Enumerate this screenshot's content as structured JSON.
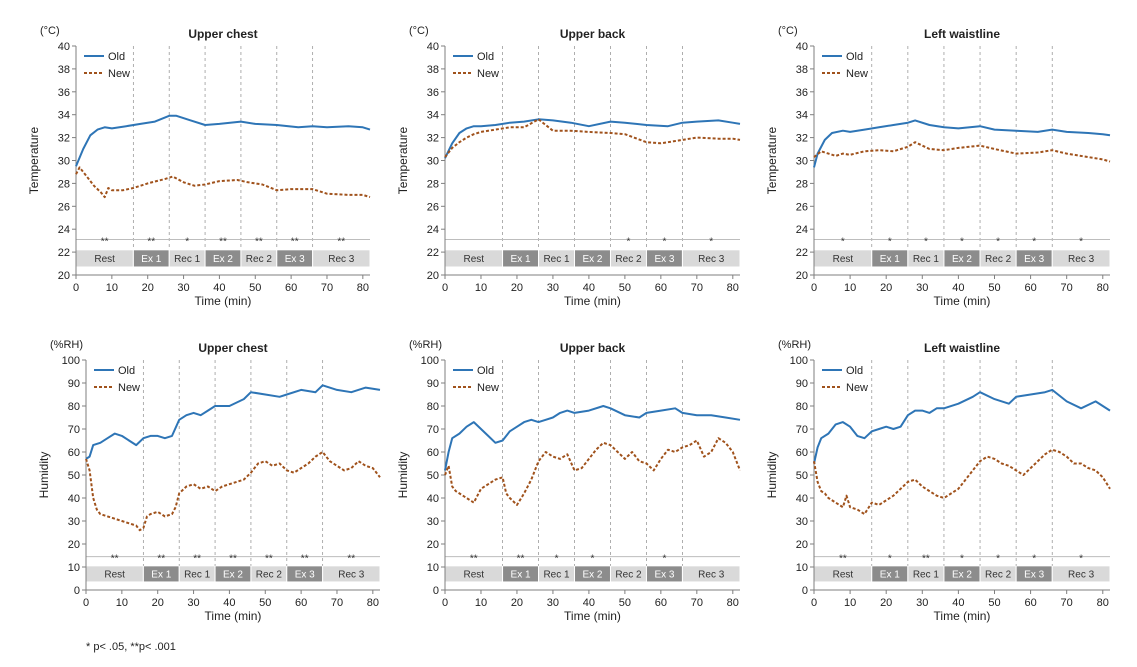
{
  "footnote": "* p< .05, **p< .001",
  "colors": {
    "old": "#2E75B6",
    "new": "#A0521C",
    "phase_light": "#D9D9D9",
    "phase_dark": "#8C8C8C",
    "axis": "#7F7F7F",
    "divider": "#9A9A9A"
  },
  "phases": [
    {
      "label": "Rest",
      "start": 0,
      "end": 16,
      "dark": false
    },
    {
      "label": "Ex 1",
      "start": 16,
      "end": 26,
      "dark": true
    },
    {
      "label": "Rec 1",
      "start": 26,
      "end": 36,
      "dark": false
    },
    {
      "label": "Ex 2",
      "start": 36,
      "end": 46,
      "dark": true
    },
    {
      "label": "Rec 2",
      "start": 46,
      "end": 56,
      "dark": false
    },
    {
      "label": "Ex 3",
      "start": 56,
      "end": 66,
      "dark": true
    },
    {
      "label": "Rec 3",
      "start": 66,
      "end": 82,
      "dark": false
    }
  ],
  "chart_data": [
    {
      "type": "line",
      "title": "Upper chest",
      "unit": "(°C)",
      "xlabel": "Time (min)",
      "ylabel": "Temperature",
      "xlim": [
        0,
        82
      ],
      "xticks": [
        0,
        10,
        20,
        30,
        40,
        50,
        60,
        70,
        80
      ],
      "ylim": [
        20,
        40
      ],
      "yticks": [
        20,
        22,
        24,
        26,
        28,
        30,
        32,
        34,
        36,
        38,
        40
      ],
      "sig_y": 23.1,
      "phase_y": [
        20.7,
        22.2
      ],
      "sig_marks": [
        "**",
        "**",
        "*",
        "**",
        "**",
        "**",
        "**"
      ],
      "legend": [
        "Old",
        "New"
      ],
      "series": [
        {
          "name": "Old",
          "x": [
            0,
            2,
            4,
            6,
            8,
            10,
            14,
            18,
            22,
            26,
            28,
            32,
            36,
            40,
            46,
            50,
            56,
            62,
            66,
            70,
            76,
            80,
            82
          ],
          "y": [
            29.5,
            31,
            32.2,
            32.7,
            32.9,
            32.8,
            33,
            33.2,
            33.4,
            33.9,
            33.9,
            33.5,
            33.1,
            33.2,
            33.4,
            33.2,
            33.1,
            32.9,
            33,
            32.9,
            33,
            32.9,
            32.7
          ]
        },
        {
          "name": "New",
          "x": [
            0,
            1,
            3,
            5,
            7,
            8,
            9,
            10,
            13,
            16,
            20,
            25,
            27,
            30,
            33,
            36,
            40,
            45,
            48,
            52,
            56,
            60,
            66,
            70,
            76,
            80,
            82
          ],
          "y": [
            28.8,
            29.4,
            28.6,
            27.8,
            27.2,
            26.8,
            27.6,
            27.4,
            27.4,
            27.6,
            28,
            28.4,
            28.6,
            28.1,
            27.8,
            27.9,
            28.2,
            28.3,
            28.1,
            27.9,
            27.4,
            27.5,
            27.5,
            27.1,
            27,
            27,
            26.8
          ]
        }
      ]
    },
    {
      "type": "line",
      "title": "Upper back",
      "unit": "(°C)",
      "xlabel": "Time (min)",
      "ylabel": "Temperature",
      "xlim": [
        0,
        82
      ],
      "xticks": [
        0,
        10,
        20,
        30,
        40,
        50,
        60,
        70,
        80
      ],
      "ylim": [
        20,
        40
      ],
      "yticks": [
        20,
        22,
        24,
        26,
        28,
        30,
        32,
        34,
        36,
        38,
        40
      ],
      "sig_y": 23.1,
      "phase_y": [
        20.7,
        22.2
      ],
      "sig_marks": [
        "",
        "",
        "",
        "",
        "*",
        "*",
        "*"
      ],
      "legend": [
        "Old",
        "New"
      ],
      "series": [
        {
          "name": "Old",
          "x": [
            0,
            2,
            4,
            6,
            8,
            10,
            14,
            18,
            22,
            26,
            30,
            35,
            40,
            46,
            50,
            56,
            62,
            66,
            70,
            76,
            80,
            82
          ],
          "y": [
            30.2,
            31.5,
            32.4,
            32.8,
            33,
            33,
            33.1,
            33.3,
            33.4,
            33.6,
            33.5,
            33.3,
            33,
            33.4,
            33.3,
            33.1,
            33,
            33.3,
            33.4,
            33.5,
            33.3,
            33.2
          ]
        },
        {
          "name": "New",
          "x": [
            0,
            2,
            4,
            6,
            8,
            10,
            14,
            18,
            22,
            26,
            30,
            35,
            40,
            46,
            50,
            56,
            60,
            66,
            70,
            76,
            80,
            82
          ],
          "y": [
            30.3,
            31.1,
            31.6,
            32,
            32.3,
            32.5,
            32.7,
            32.9,
            32.9,
            33.6,
            32.6,
            32.6,
            32.5,
            32.4,
            32.3,
            31.6,
            31.5,
            31.8,
            32,
            31.9,
            31.9,
            31.8
          ]
        }
      ]
    },
    {
      "type": "line",
      "title": "Left waistline",
      "unit": "(°C)",
      "xlabel": "Time (min)",
      "ylabel": "Temperature",
      "xlim": [
        0,
        82
      ],
      "xticks": [
        0,
        10,
        20,
        30,
        40,
        50,
        60,
        70,
        80
      ],
      "ylim": [
        20,
        40
      ],
      "yticks": [
        20,
        22,
        24,
        26,
        28,
        30,
        32,
        34,
        36,
        38,
        40
      ],
      "sig_y": 23.1,
      "phase_y": [
        20.7,
        22.2
      ],
      "sig_marks": [
        "*",
        "*",
        "*",
        "*",
        "*",
        "*",
        "*"
      ],
      "legend": [
        "Old",
        "New"
      ],
      "series": [
        {
          "name": "Old",
          "x": [
            0,
            1,
            3,
            5,
            8,
            10,
            14,
            18,
            22,
            26,
            28,
            32,
            36,
            40,
            46,
            50,
            56,
            62,
            66,
            70,
            76,
            80,
            82
          ],
          "y": [
            29.4,
            30.6,
            31.8,
            32.4,
            32.6,
            32.5,
            32.7,
            32.9,
            33.1,
            33.3,
            33.5,
            33.1,
            32.9,
            32.8,
            33,
            32.7,
            32.6,
            32.5,
            32.7,
            32.5,
            32.4,
            32.3,
            32.2
          ]
        },
        {
          "name": "New",
          "x": [
            0,
            2,
            4,
            6,
            8,
            10,
            14,
            18,
            22,
            26,
            28,
            32,
            36,
            40,
            46,
            50,
            56,
            62,
            66,
            70,
            76,
            80,
            82
          ],
          "y": [
            30.3,
            30.8,
            30.6,
            30.4,
            30.6,
            30.5,
            30.8,
            30.9,
            30.8,
            31.2,
            31.6,
            31,
            30.9,
            31.1,
            31.3,
            31,
            30.6,
            30.7,
            30.9,
            30.6,
            30.3,
            30.1,
            29.9
          ]
        }
      ]
    },
    {
      "type": "line",
      "title": "Upper chest",
      "unit": "(%RH)",
      "xlabel": "Time (min)",
      "ylabel": "Humidity",
      "xlim": [
        0,
        82
      ],
      "xticks": [
        0,
        10,
        20,
        30,
        40,
        50,
        60,
        70,
        80
      ],
      "ylim": [
        0,
        100
      ],
      "yticks": [
        0,
        10,
        20,
        30,
        40,
        50,
        60,
        70,
        80,
        90,
        100
      ],
      "sig_y": 14.5,
      "phase_y": [
        3.5,
        10.5
      ],
      "sig_marks": [
        "**",
        "**",
        "**",
        "**",
        "**",
        "**",
        "**"
      ],
      "legend": [
        "Old",
        "New"
      ],
      "series": [
        {
          "name": "Old",
          "x": [
            0,
            1,
            2,
            4,
            6,
            8,
            10,
            12,
            14,
            16,
            18,
            20,
            22,
            24,
            26,
            28,
            30,
            32,
            34,
            36,
            40,
            44,
            46,
            50,
            54,
            56,
            60,
            64,
            66,
            70,
            74,
            78,
            82
          ],
          "y": [
            57,
            58,
            63,
            64,
            66,
            68,
            67,
            65,
            63,
            66,
            67,
            67,
            66,
            67,
            74,
            76,
            77,
            76,
            78,
            80,
            80,
            83,
            86,
            85,
            84,
            85,
            87,
            86,
            89,
            87,
            86,
            88,
            87
          ]
        },
        {
          "name": "New",
          "x": [
            0,
            1,
            2,
            3,
            4,
            6,
            8,
            10,
            12,
            14,
            15,
            16,
            17,
            18,
            20,
            22,
            24,
            25,
            26,
            28,
            30,
            32,
            34,
            36,
            38,
            40,
            42,
            44,
            46,
            48,
            50,
            52,
            54,
            56,
            58,
            60,
            62,
            64,
            66,
            68,
            70,
            72,
            74,
            76,
            78,
            80,
            82
          ],
          "y": [
            57,
            52,
            40,
            35,
            33,
            32,
            31,
            30,
            29,
            28,
            26,
            27,
            32,
            33,
            34,
            32,
            33,
            36,
            42,
            45,
            46,
            44,
            45,
            43,
            45,
            46,
            47,
            48,
            51,
            55,
            56,
            54,
            55,
            52,
            51,
            53,
            55,
            58,
            60,
            56,
            54,
            52,
            53,
            56,
            54,
            53,
            49
          ]
        }
      ]
    },
    {
      "type": "line",
      "title": "Upper back",
      "unit": "(%RH)",
      "xlabel": "Time (min)",
      "ylabel": "Humidity",
      "xlim": [
        0,
        82
      ],
      "xticks": [
        0,
        10,
        20,
        30,
        40,
        50,
        60,
        70,
        80
      ],
      "ylim": [
        0,
        100
      ],
      "yticks": [
        0,
        10,
        20,
        30,
        40,
        50,
        60,
        70,
        80,
        90,
        100
      ],
      "sig_y": 14.5,
      "phase_y": [
        3.5,
        10.5
      ],
      "sig_marks": [
        "**",
        "**",
        "*",
        "*",
        "",
        "*",
        ""
      ],
      "legend": [
        "Old",
        "New"
      ],
      "series": [
        {
          "name": "Old",
          "x": [
            0,
            1,
            2,
            4,
            6,
            8,
            10,
            12,
            14,
            16,
            18,
            20,
            22,
            24,
            26,
            28,
            30,
            32,
            34,
            36,
            40,
            44,
            46,
            50,
            54,
            56,
            60,
            64,
            66,
            70,
            74,
            78,
            82
          ],
          "y": [
            52,
            60,
            66,
            68,
            71,
            73,
            70,
            67,
            64,
            65,
            69,
            71,
            73,
            74,
            73,
            74,
            75,
            77,
            78,
            77,
            78,
            80,
            79,
            76,
            75,
            77,
            78,
            79,
            77,
            76,
            76,
            75,
            74
          ]
        },
        {
          "name": "New",
          "x": [
            0,
            1,
            2,
            3,
            4,
            6,
            8,
            10,
            12,
            14,
            16,
            17,
            18,
            20,
            22,
            24,
            26,
            28,
            30,
            32,
            34,
            36,
            38,
            40,
            42,
            44,
            46,
            48,
            50,
            52,
            54,
            56,
            58,
            60,
            62,
            64,
            66,
            68,
            70,
            72,
            74,
            76,
            78,
            80,
            82
          ],
          "y": [
            50,
            54,
            45,
            43,
            42,
            40,
            38,
            44,
            46,
            48,
            49,
            42,
            40,
            37,
            42,
            48,
            56,
            60,
            58,
            57,
            59,
            52,
            53,
            57,
            61,
            64,
            63,
            60,
            57,
            60,
            56,
            55,
            52,
            57,
            61,
            60,
            62,
            63,
            65,
            58,
            60,
            66,
            64,
            60,
            52
          ]
        }
      ]
    },
    {
      "type": "line",
      "title": "Left waistline",
      "unit": "(%RH)",
      "xlabel": "Time (min)",
      "ylabel": "Humidity",
      "xlim": [
        0,
        82
      ],
      "xticks": [
        0,
        10,
        20,
        30,
        40,
        50,
        60,
        70,
        80
      ],
      "ylim": [
        0,
        100
      ],
      "yticks": [
        0,
        10,
        20,
        30,
        40,
        50,
        60,
        70,
        80,
        90,
        100
      ],
      "sig_y": 14.5,
      "phase_y": [
        3.5,
        10.5
      ],
      "sig_marks": [
        "**",
        "*",
        "**",
        "*",
        "*",
        "*",
        "*"
      ],
      "legend": [
        "Old",
        "New"
      ],
      "series": [
        {
          "name": "Old",
          "x": [
            0,
            1,
            2,
            4,
            6,
            8,
            10,
            12,
            14,
            16,
            18,
            20,
            22,
            24,
            26,
            28,
            30,
            32,
            34,
            36,
            40,
            44,
            46,
            50,
            54,
            56,
            60,
            64,
            66,
            70,
            74,
            78,
            82
          ],
          "y": [
            55,
            62,
            66,
            68,
            72,
            73,
            71,
            67,
            66,
            69,
            70,
            71,
            70,
            71,
            76,
            78,
            78,
            77,
            79,
            79,
            81,
            84,
            86,
            83,
            81,
            84,
            85,
            86,
            87,
            82,
            79,
            82,
            78
          ]
        },
        {
          "name": "New",
          "x": [
            0,
            1,
            2,
            3,
            4,
            6,
            8,
            9,
            10,
            12,
            14,
            16,
            18,
            20,
            22,
            24,
            26,
            28,
            30,
            32,
            34,
            36,
            38,
            40,
            42,
            44,
            46,
            48,
            50,
            52,
            54,
            56,
            58,
            60,
            62,
            64,
            66,
            68,
            70,
            72,
            74,
            76,
            78,
            80,
            82
          ],
          "y": [
            56,
            47,
            43,
            42,
            40,
            38,
            36,
            41,
            36,
            35,
            33,
            38,
            37,
            39,
            41,
            44,
            47,
            48,
            45,
            43,
            41,
            40,
            42,
            44,
            48,
            52,
            56,
            58,
            57,
            55,
            54,
            52,
            50,
            53,
            56,
            59,
            61,
            60,
            58,
            55,
            55,
            53,
            52,
            49,
            44
          ]
        }
      ]
    }
  ]
}
